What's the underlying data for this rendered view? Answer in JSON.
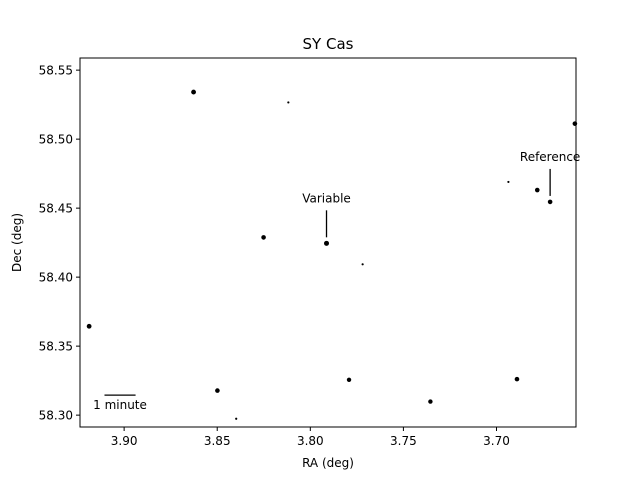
{
  "chart_data": {
    "type": "scatter",
    "title": "SY Cas",
    "xlabel": "RA (deg)",
    "ylabel": "Dec (deg)",
    "xlim": [
      3.9237,
      3.6573
    ],
    "ylim": [
      58.2914,
      58.5588
    ],
    "xticks": [
      3.9,
      3.85,
      3.8,
      3.75,
      3.7
    ],
    "xtick_labels": [
      "3.90",
      "3.85",
      "3.80",
      "3.75",
      "3.70"
    ],
    "yticks": [
      58.3,
      58.35,
      58.4,
      58.45,
      58.5,
      58.55
    ],
    "ytick_labels": [
      "58.30",
      "58.35",
      "58.40",
      "58.45",
      "58.50",
      "58.55"
    ],
    "grid": false,
    "x_inverted": true,
    "points": [
      {
        "x": 3.8627,
        "y": 58.5341,
        "r": 2.4
      },
      {
        "x": 3.8118,
        "y": 58.5266,
        "r": 1.1
      },
      {
        "x": 3.6579,
        "y": 58.5112,
        "r": 2.3
      },
      {
        "x": 3.6936,
        "y": 58.469,
        "r": 1.1
      },
      {
        "x": 3.6781,
        "y": 58.4631,
        "r": 2.3
      },
      {
        "x": 3.6712,
        "y": 58.4545,
        "r": 2.3
      },
      {
        "x": 3.8251,
        "y": 58.4288,
        "r": 2.3
      },
      {
        "x": 3.7913,
        "y": 58.4245,
        "r": 2.5
      },
      {
        "x": 3.7719,
        "y": 58.4093,
        "r": 1.1
      },
      {
        "x": 3.9188,
        "y": 58.3644,
        "r": 2.4
      },
      {
        "x": 3.7792,
        "y": 58.3256,
        "r": 2.2
      },
      {
        "x": 3.689,
        "y": 58.3261,
        "r": 2.3
      },
      {
        "x": 3.8499,
        "y": 58.3178,
        "r": 2.3
      },
      {
        "x": 3.7355,
        "y": 58.3098,
        "r": 2.2
      },
      {
        "x": 3.8398,
        "y": 58.2974,
        "r": 1.1
      }
    ],
    "annotations": [
      {
        "label": "Variable",
        "x": 3.7913,
        "y": 58.4245
      },
      {
        "label": "Reference",
        "x": 3.6712,
        "y": 58.4545
      }
    ],
    "scale_bar": {
      "label": "1 minute",
      "length_deg": 0.0167
    }
  }
}
